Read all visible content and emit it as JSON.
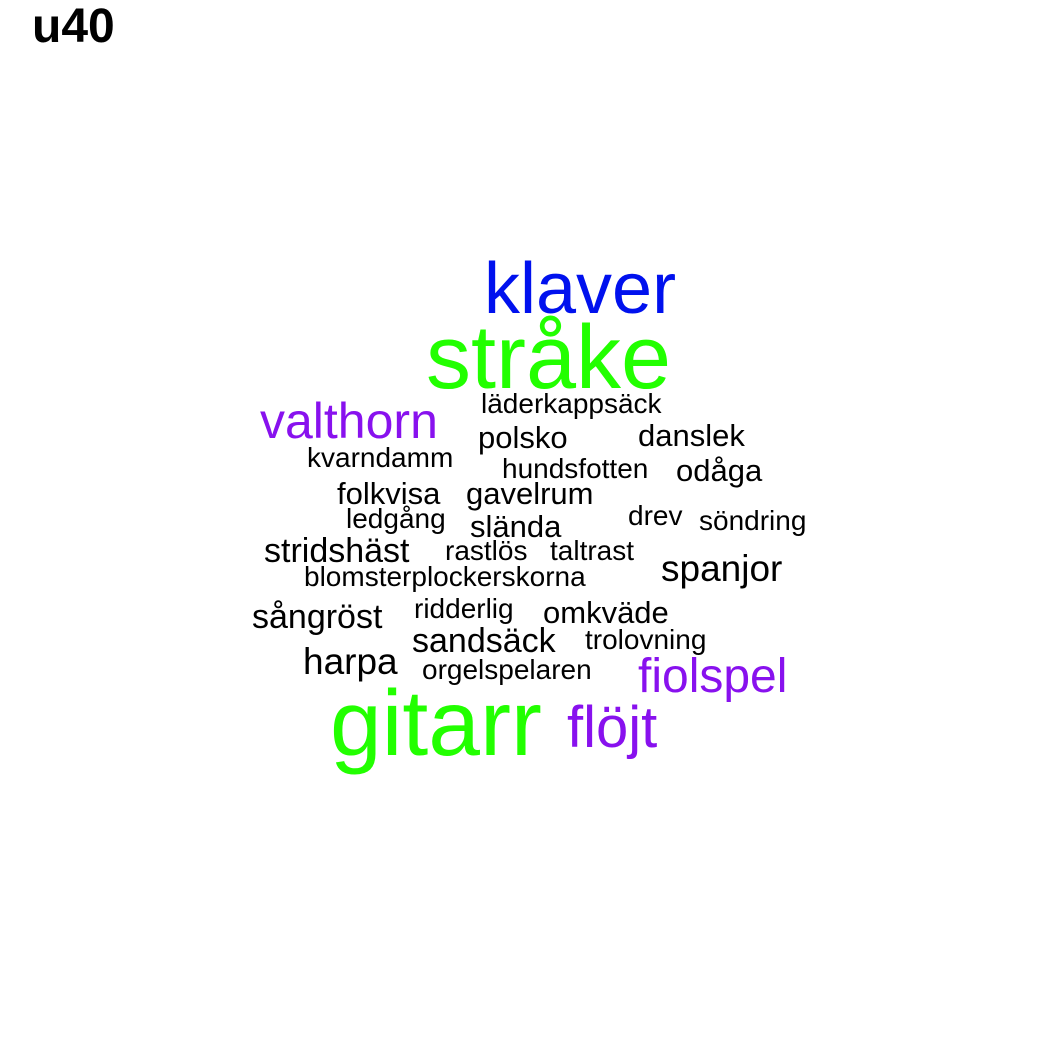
{
  "title": "u40",
  "colors": {
    "green": "#22ff00",
    "blue": "#0011ee",
    "purple": "#8811ee",
    "black": "#000000"
  },
  "words": [
    {
      "text": "klaver",
      "color": "blue"
    },
    {
      "text": "stråke",
      "color": "green"
    },
    {
      "text": "valthorn",
      "color": "purple"
    },
    {
      "text": "läderkappsäck",
      "color": "black"
    },
    {
      "text": "polsko",
      "color": "black"
    },
    {
      "text": "danslek",
      "color": "black"
    },
    {
      "text": "kvarndamm",
      "color": "black"
    },
    {
      "text": "hundsfotten",
      "color": "black"
    },
    {
      "text": "odåga",
      "color": "black"
    },
    {
      "text": "folkvisa",
      "color": "black"
    },
    {
      "text": "gavelrum",
      "color": "black"
    },
    {
      "text": "ledgång",
      "color": "black"
    },
    {
      "text": "slända",
      "color": "black"
    },
    {
      "text": "drev",
      "color": "black"
    },
    {
      "text": "söndring",
      "color": "black"
    },
    {
      "text": "stridshäst",
      "color": "black"
    },
    {
      "text": "rastlös",
      "color": "black"
    },
    {
      "text": "taltrast",
      "color": "black"
    },
    {
      "text": "blomsterplockerskorna",
      "color": "black"
    },
    {
      "text": "spanjor",
      "color": "black"
    },
    {
      "text": "sångröst",
      "color": "black"
    },
    {
      "text": "ridderlig",
      "color": "black"
    },
    {
      "text": "omkväde",
      "color": "black"
    },
    {
      "text": "sandsäck",
      "color": "black"
    },
    {
      "text": "trolovning",
      "color": "black"
    },
    {
      "text": "harpa",
      "color": "black"
    },
    {
      "text": "orgelspelaren",
      "color": "black"
    },
    {
      "text": "fiolspel",
      "color": "purple"
    },
    {
      "text": "gitarr",
      "color": "green"
    },
    {
      "text": "flöjt",
      "color": "purple"
    }
  ]
}
